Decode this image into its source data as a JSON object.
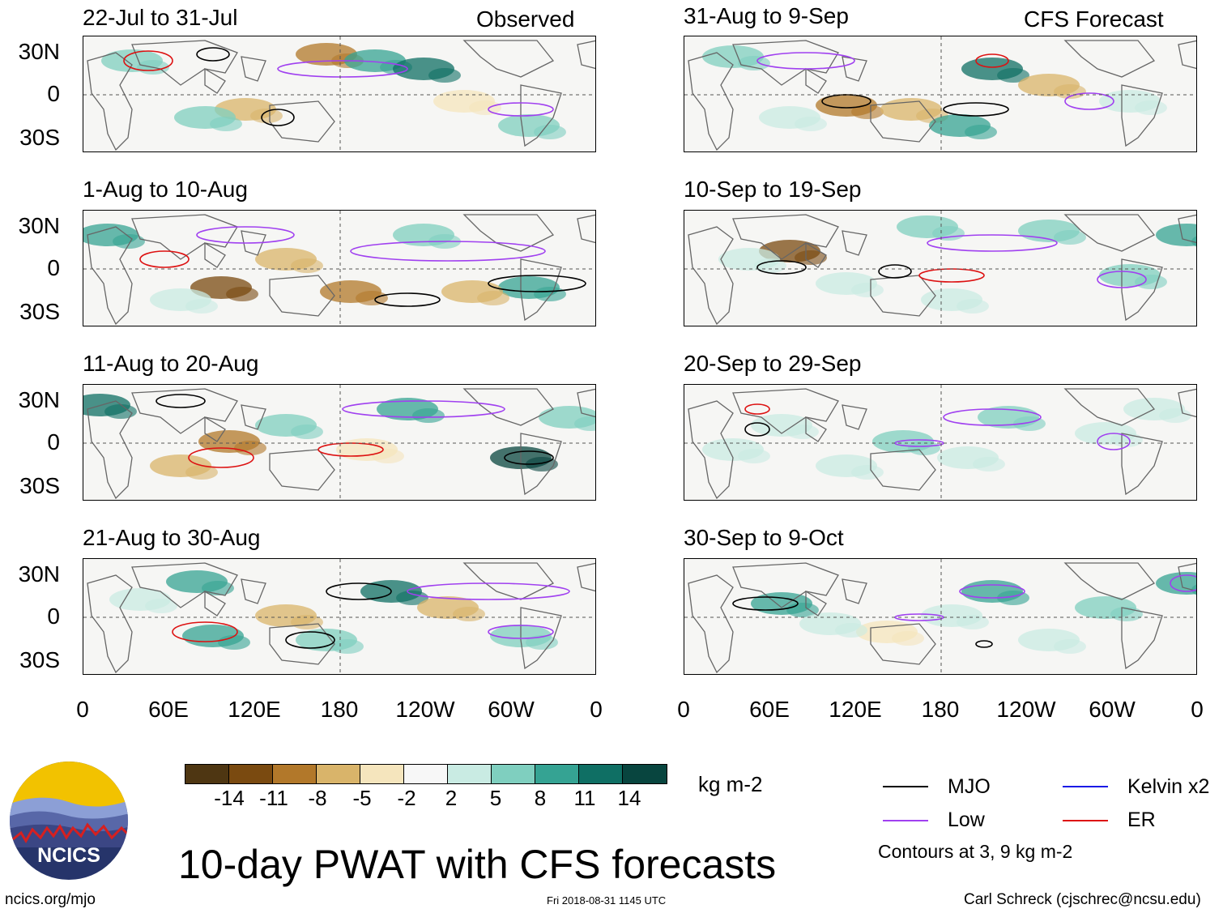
{
  "header": {
    "observed_label": "Observed",
    "forecast_label": "CFS Forecast"
  },
  "panels_left": [
    {
      "title": "22-Jul to 31-Jul"
    },
    {
      "title": "1-Aug to 10-Aug"
    },
    {
      "title": "11-Aug to 20-Aug"
    },
    {
      "title": "21-Aug to 30-Aug"
    }
  ],
  "panels_right": [
    {
      "title": "31-Aug to 9-Sep"
    },
    {
      "title": "10-Sep to 19-Sep"
    },
    {
      "title": "20-Sep to 29-Sep"
    },
    {
      "title": "30-Sep to 9-Oct"
    }
  ],
  "axes": {
    "lat_labels": [
      "30N",
      "0",
      "30S"
    ],
    "lon_labels": [
      "0",
      "60E",
      "120E",
      "180",
      "120W",
      "60W",
      "0"
    ]
  },
  "colorbar": {
    "unit": "kg m-2",
    "ticks": [
      "-14",
      "-11",
      "-8",
      "-5",
      "-2",
      "2",
      "5",
      "8",
      "11",
      "14"
    ],
    "colors": [
      "#4e3612",
      "#7a4a10",
      "#b2782a",
      "#d9b46a",
      "#f5e5bd",
      "#f7f7f7",
      "#c9ebe3",
      "#7fcfbf",
      "#35a393",
      "#0f6f64",
      "#08453f"
    ]
  },
  "legend": {
    "items": [
      {
        "label": "MJO",
        "color": "#000000"
      },
      {
        "label": "Kelvin x2",
        "color": "#1a1ae6"
      },
      {
        "label": "Low",
        "color": "#a040f0"
      },
      {
        "label": "ER",
        "color": "#dd1111"
      }
    ],
    "note": "Contours at 3, 9 kg m-2"
  },
  "logo": {
    "text": "NCICS"
  },
  "main_title": "10-day PWAT with CFS forecasts",
  "footer": {
    "left": "ncics.org/mjo",
    "center": "Fri 2018-08-31 1145 UTC",
    "right": "Carl Schreck (cjschrec@ncsu.edu)"
  }
}
